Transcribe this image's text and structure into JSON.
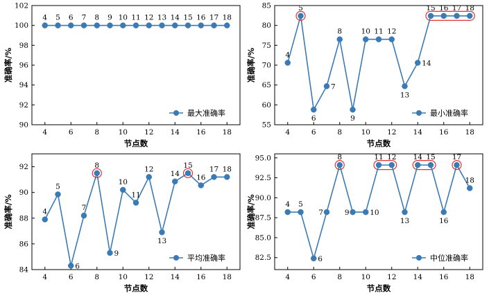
{
  "chart_data": [
    {
      "type": "line",
      "xlabel": "节点数",
      "ylabel": "准确率/%",
      "legend": "最大准确率",
      "legend_position": "bottom-right",
      "grid": false,
      "xlim": [
        3,
        19
      ],
      "ylim": [
        90,
        102
      ],
      "xticks": [
        4,
        6,
        8,
        10,
        12,
        14,
        16,
        18
      ],
      "yticks": [
        90,
        92,
        94,
        96,
        98,
        100,
        102
      ],
      "ytick_labels": [
        "90",
        "92",
        "94",
        "96",
        "98",
        "100",
        "102"
      ],
      "x": [
        4,
        5,
        6,
        7,
        8,
        9,
        10,
        11,
        12,
        13,
        14,
        15,
        16,
        17,
        18
      ],
      "values": [
        100,
        100,
        100,
        100,
        100,
        100,
        100,
        100,
        100,
        100,
        100,
        100,
        100,
        100,
        100
      ],
      "point_labels": [
        "4",
        "5",
        "6",
        "7",
        "8",
        "9",
        "10",
        "11",
        "12",
        "13",
        "14",
        "15",
        "16",
        "17",
        "18"
      ],
      "highlight_circles": [],
      "highlight_boxes": [],
      "color": "#3a7ab5",
      "highlight_color": "#e03030"
    },
    {
      "type": "line",
      "xlabel": "节点数",
      "ylabel": "准确率/%",
      "legend": "最小准确率",
      "legend_position": "bottom-right",
      "grid": false,
      "xlim": [
        3,
        19
      ],
      "ylim": [
        55,
        85
      ],
      "xticks": [
        4,
        6,
        8,
        10,
        12,
        14,
        16,
        18
      ],
      "yticks": [
        55,
        60,
        65,
        70,
        75,
        80,
        85
      ],
      "ytick_labels": [
        "55",
        "60",
        "65",
        "70",
        "75",
        "80",
        "85"
      ],
      "x": [
        4,
        5,
        6,
        7,
        8,
        9,
        10,
        11,
        12,
        13,
        14,
        15,
        16,
        17,
        18
      ],
      "values": [
        70.6,
        82.4,
        58.8,
        64.7,
        76.5,
        58.8,
        76.5,
        76.5,
        76.5,
        64.7,
        70.6,
        82.4,
        82.4,
        82.4,
        82.4
      ],
      "point_labels": [
        "4",
        "5",
        "6",
        "7",
        "8",
        "9",
        "10",
        "11",
        "12",
        "13",
        "14",
        "15",
        "16",
        "17",
        "18"
      ],
      "label_below": [
        false,
        false,
        true,
        false,
        false,
        true,
        false,
        false,
        false,
        true,
        false,
        false,
        false,
        false,
        false
      ],
      "label_right": [
        false,
        false,
        false,
        true,
        false,
        false,
        false,
        false,
        false,
        false,
        true,
        false,
        false,
        false,
        false
      ],
      "highlight_circles": [
        5
      ],
      "highlight_boxes": [
        [
          15,
          18
        ]
      ],
      "color": "#3a7ab5",
      "highlight_color": "#e03030"
    },
    {
      "type": "line",
      "xlabel": "节点数",
      "ylabel": "准确率/%",
      "legend": "平均准确率",
      "legend_position": "bottom-right",
      "grid": false,
      "xlim": [
        3,
        19
      ],
      "ylim": [
        84,
        93
      ],
      "xticks": [
        4,
        6,
        8,
        10,
        12,
        14,
        16,
        18
      ],
      "yticks": [
        84,
        86,
        88,
        90,
        92
      ],
      "ytick_labels": [
        "84",
        "86",
        "88",
        "90",
        "92"
      ],
      "x": [
        4,
        5,
        6,
        7,
        8,
        9,
        10,
        11,
        12,
        13,
        14,
        15,
        16,
        17,
        18
      ],
      "values": [
        87.9,
        89.85,
        84.3,
        88.2,
        91.5,
        85.3,
        90.2,
        89.2,
        91.2,
        86.9,
        90.85,
        91.5,
        90.55,
        91.2,
        91.2
      ],
      "point_labels": [
        "4",
        "5",
        "6",
        "7",
        "8",
        "9",
        "10",
        "11",
        "12",
        "13",
        "14",
        "15",
        "16",
        "17",
        "18"
      ],
      "label_below": [
        false,
        false,
        false,
        false,
        false,
        false,
        false,
        false,
        false,
        true,
        false,
        false,
        false,
        false,
        false
      ],
      "label_right": [
        false,
        false,
        true,
        false,
        false,
        true,
        false,
        false,
        false,
        false,
        false,
        false,
        false,
        false,
        false
      ],
      "highlight_circles": [
        8,
        15
      ],
      "highlight_boxes": [],
      "color": "#3a7ab5",
      "highlight_color": "#e03030"
    },
    {
      "type": "line",
      "xlabel": "节点数",
      "ylabel": "准确率/%",
      "legend": "中位准确率",
      "legend_position": "bottom-right",
      "grid": false,
      "xlim": [
        3,
        19
      ],
      "ylim": [
        81,
        95.5
      ],
      "xticks": [
        4,
        6,
        8,
        10,
        12,
        14,
        16,
        18
      ],
      "yticks": [
        82.5,
        85.0,
        87.5,
        90.0,
        92.5,
        95.0
      ],
      "ytick_labels": [
        "82.5",
        "85.0",
        "87.5",
        "90.0",
        "92.5",
        "95.0"
      ],
      "x": [
        4,
        5,
        6,
        7,
        8,
        9,
        10,
        11,
        12,
        13,
        14,
        15,
        16,
        17,
        18
      ],
      "values": [
        88.2,
        88.2,
        82.4,
        88.2,
        94.1,
        88.2,
        88.2,
        94.1,
        94.1,
        88.2,
        94.1,
        94.1,
        88.2,
        94.1,
        91.2
      ],
      "point_labels": [
        "4",
        "5",
        "6",
        "7",
        "8",
        "9",
        "10",
        "11",
        "12",
        "13",
        "14",
        "15",
        "16",
        "17",
        "18"
      ],
      "label_below": [
        false,
        false,
        false,
        false,
        false,
        false,
        false,
        false,
        false,
        true,
        false,
        false,
        true,
        false,
        false
      ],
      "label_right": [
        false,
        false,
        true,
        false,
        false,
        false,
        true,
        false,
        false,
        false,
        false,
        false,
        false,
        false,
        false
      ],
      "label_left": [
        false,
        false,
        false,
        true,
        false,
        true,
        false,
        false,
        false,
        false,
        false,
        false,
        false,
        false,
        false
      ],
      "highlight_circles": [
        8,
        17
      ],
      "highlight_boxes": [
        [
          11,
          12
        ],
        [
          14,
          15
        ]
      ],
      "color": "#3a7ab5",
      "highlight_color": "#e03030"
    }
  ]
}
